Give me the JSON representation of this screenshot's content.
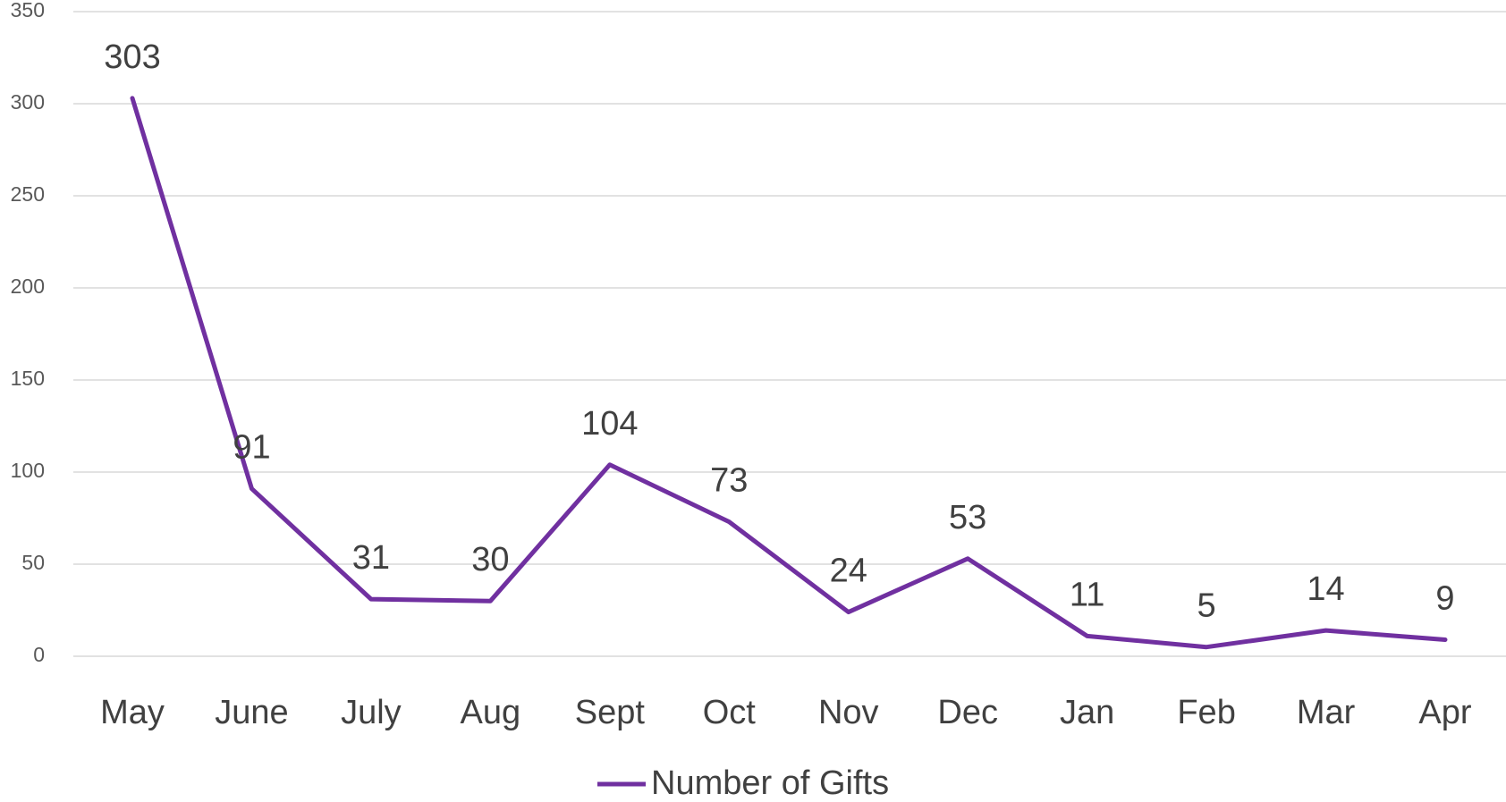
{
  "chart_data": {
    "type": "line",
    "categories": [
      "May",
      "June",
      "July",
      "Aug",
      "Sept",
      "Oct",
      "Nov",
      "Dec",
      "Jan",
      "Feb",
      "Mar",
      "Apr"
    ],
    "series": [
      {
        "name": "Number of Gifts",
        "color": "#7030a0",
        "values": [
          303,
          91,
          31,
          30,
          104,
          73,
          24,
          53,
          11,
          5,
          14,
          9
        ]
      }
    ],
    "ylim": [
      0,
      350
    ],
    "yticks": [
      0,
      50,
      100,
      150,
      200,
      250,
      300,
      350
    ],
    "grid": true,
    "legend": "bottom"
  }
}
